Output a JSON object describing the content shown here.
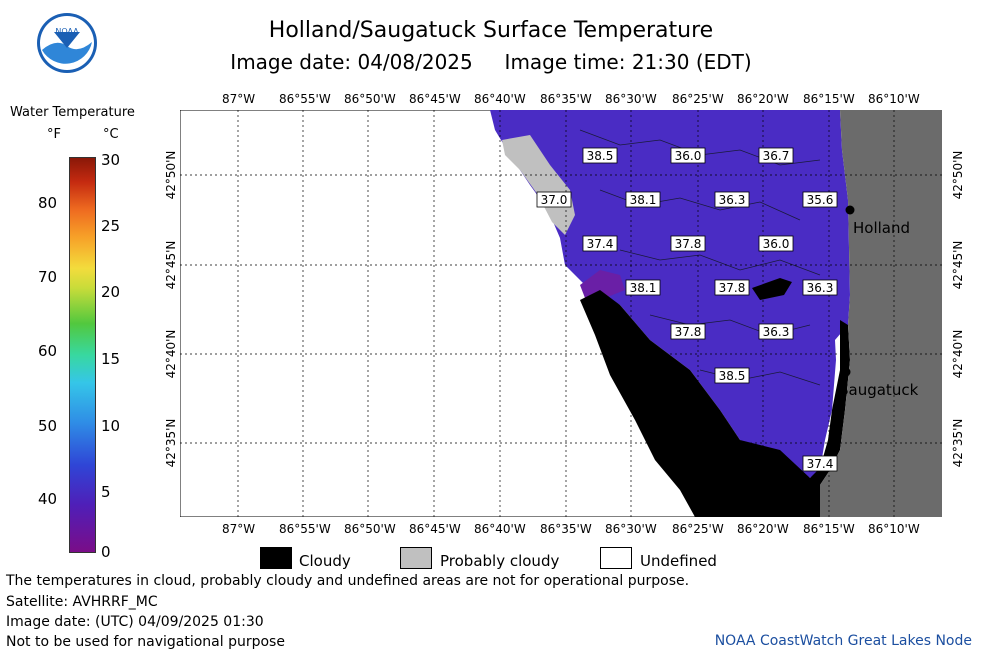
{
  "header": {
    "title": "Holland/Saugatuck Surface Temperature",
    "subtitle": "Image date: 04/08/2025     Image time: 21:30 (EDT)",
    "logo_text": "NOAA"
  },
  "legend": {
    "title": "Water Temperature",
    "unit_f": "°F",
    "unit_c": "°C",
    "ticks_f": [
      "80",
      "70",
      "60",
      "50",
      "40"
    ],
    "ticks_c": [
      "30",
      "25",
      "20",
      "15",
      "10",
      "5",
      "0"
    ]
  },
  "map": {
    "lon_labels": [
      "87°W",
      "86°55'W",
      "86°50'W",
      "86°45'W",
      "86°40'W",
      "86°35'W",
      "86°30'W",
      "86°25'W",
      "86°20'W",
      "86°15'W",
      "86°10'W"
    ],
    "lat_labels": [
      "42°50'N",
      "42°45'N",
      "42°40'N",
      "42°35'N"
    ],
    "cities": [
      {
        "name": "Holland"
      },
      {
        "name": "Saugatuck"
      }
    ],
    "temp_labels": [
      {
        "text": "38.5"
      },
      {
        "text": "36.0"
      },
      {
        "text": "36.7"
      },
      {
        "text": "37.0"
      },
      {
        "text": "38.1"
      },
      {
        "text": "36.3"
      },
      {
        "text": "35.6"
      },
      {
        "text": "37.4"
      },
      {
        "text": "37.8"
      },
      {
        "text": "36.0"
      },
      {
        "text": "38.1"
      },
      {
        "text": "37.8"
      },
      {
        "text": "36.3"
      },
      {
        "text": "37.8"
      },
      {
        "text": "36.3"
      },
      {
        "text": "38.5"
      },
      {
        "text": "37.4"
      }
    ],
    "colors": {
      "water": "#4a2cc4",
      "land": "#6b6b6b",
      "cloudy": "#000000",
      "probably_cloudy": "#c0c0c0",
      "undefined": "#ffffff"
    }
  },
  "map_legend": {
    "cloudy": "Cloudy",
    "probably_cloudy": "Probably cloudy",
    "undefined": "Undefined"
  },
  "footer": {
    "note1": "The temperatures in cloud, probably cloudy and undefined areas are not for operational purpose.",
    "satellite": "Satellite: AVHRRF_MC",
    "utc_date": "Image date: (UTC) 04/09/2025  01:30",
    "nav_note": "Not to be used for navigational purpose",
    "credit": "NOAA CoastWatch Great Lakes Node"
  }
}
